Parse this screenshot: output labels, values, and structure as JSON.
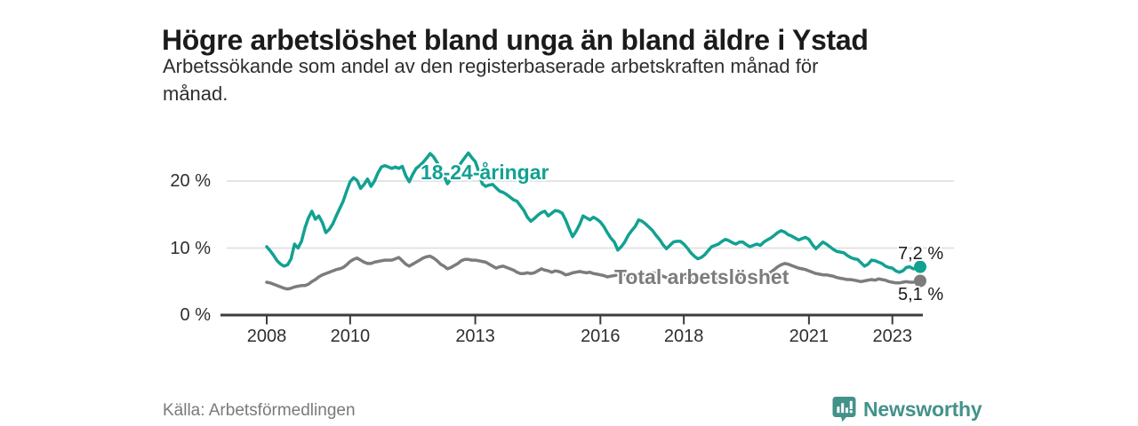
{
  "header": {
    "title": "Högre arbetslöshet bland unga än bland äldre i Ystad",
    "subtitle": "Arbetssökande som andel av den registerbaserade arbetskraften månad för månad.",
    "subtitle_line1": "Arbetssökande som andel av den registerbaserade arbetskraften månad för",
    "subtitle_line2": "månad."
  },
  "chart_data": {
    "type": "line",
    "title": "Högre arbetslöshet bland unga än bland äldre i Ystad",
    "x_start": "2008-01",
    "x_end": "2023-09",
    "x_frequency": "monthly",
    "xticks": [
      2008,
      2010,
      2013,
      2016,
      2018,
      2021,
      2023
    ],
    "yticks": [
      0,
      10,
      20
    ],
    "ytick_labels": [
      "0 %",
      "10 %",
      "20 %"
    ],
    "ylim": [
      0,
      25.5
    ],
    "grid": "horizontal",
    "legend_position": "inline-labels",
    "series": [
      {
        "name": "18-24-åringar",
        "color": "#12a192",
        "end_value": 7.2,
        "end_label": "7,2 %",
        "values": [
          10.2,
          9.6,
          8.9,
          8.1,
          7.6,
          7.3,
          7.5,
          8.4,
          10.6,
          10.0,
          11.0,
          13.0,
          14.5,
          15.5,
          14.3,
          14.8,
          13.8,
          12.3,
          12.8,
          13.6,
          14.8,
          15.9,
          17.0,
          18.5,
          19.9,
          20.5,
          20.1,
          18.9,
          19.5,
          20.3,
          19.2,
          20.0,
          21.2,
          22.1,
          22.3,
          22.1,
          21.9,
          22.1,
          21.9,
          22.2,
          20.8,
          19.9,
          21.0,
          21.9,
          22.3,
          22.8,
          23.4,
          24.1,
          23.6,
          22.8,
          21.9,
          20.8,
          19.6,
          20.3,
          21.2,
          22.0,
          22.8,
          23.5,
          24.2,
          23.5,
          22.9,
          21.4,
          19.6,
          19.2,
          19.4,
          19.5,
          19.0,
          18.5,
          18.3,
          18.0,
          17.6,
          17.2,
          17.0,
          16.3,
          15.6,
          14.6,
          14.0,
          14.4,
          14.9,
          15.3,
          15.5,
          14.8,
          15.2,
          15.6,
          15.5,
          15.2,
          14.2,
          12.9,
          11.7,
          12.5,
          13.5,
          14.8,
          14.5,
          14.2,
          14.6,
          14.3,
          13.9,
          13.2,
          12.3,
          11.5,
          10.9,
          9.7,
          10.2,
          10.9,
          11.9,
          12.6,
          13.2,
          14.2,
          14.0,
          13.6,
          13.1,
          12.6,
          11.9,
          11.3,
          10.5,
          9.9,
          10.4,
          10.9,
          11.0,
          11.0,
          10.6,
          10.0,
          9.3,
          8.8,
          8.4,
          8.6,
          9.0,
          9.6,
          10.2,
          10.4,
          10.6,
          11.0,
          11.3,
          11.1,
          10.8,
          10.6,
          10.9,
          10.9,
          10.5,
          10.2,
          10.4,
          10.6,
          10.4,
          10.9,
          11.2,
          11.5,
          11.9,
          12.3,
          12.6,
          12.4,
          12.0,
          11.8,
          11.5,
          11.2,
          11.4,
          11.6,
          11.3,
          10.5,
          9.9,
          10.4,
          10.9,
          10.6,
          10.2,
          9.8,
          9.5,
          9.4,
          9.3,
          8.9,
          8.6,
          8.4,
          8.3,
          7.8,
          7.3,
          7.6,
          8.2,
          8.1,
          7.9,
          7.7,
          7.3,
          7.1,
          7.0,
          6.6,
          6.4,
          6.6,
          7.1,
          7.2,
          6.9,
          7.0,
          7.2
        ]
      },
      {
        "name": "Total arbetslöshet",
        "color": "#7c7c7c",
        "end_value": 5.1,
        "end_label": "5,1 %",
        "values": [
          4.9,
          4.8,
          4.6,
          4.4,
          4.2,
          4.0,
          3.9,
          4.0,
          4.2,
          4.3,
          4.4,
          4.4,
          4.6,
          5.0,
          5.3,
          5.7,
          6.0,
          6.2,
          6.4,
          6.6,
          6.8,
          6.9,
          7.1,
          7.5,
          8.0,
          8.3,
          8.5,
          8.2,
          7.9,
          7.7,
          7.7,
          7.9,
          8.0,
          8.1,
          8.2,
          8.2,
          8.2,
          8.4,
          8.6,
          8.1,
          7.6,
          7.3,
          7.6,
          7.9,
          8.2,
          8.5,
          8.7,
          8.8,
          8.5,
          8.1,
          7.6,
          7.3,
          6.9,
          7.1,
          7.4,
          7.7,
          8.1,
          8.3,
          8.3,
          8.2,
          8.2,
          8.1,
          8.0,
          7.9,
          7.6,
          7.3,
          7.0,
          7.2,
          7.3,
          7.1,
          6.9,
          6.7,
          6.4,
          6.2,
          6.2,
          6.3,
          6.2,
          6.3,
          6.6,
          6.9,
          6.7,
          6.6,
          6.4,
          6.6,
          6.5,
          6.3,
          6.0,
          6.1,
          6.3,
          6.4,
          6.5,
          6.4,
          6.3,
          6.4,
          6.2,
          6.1,
          6.0,
          5.9,
          5.7,
          5.8,
          5.9,
          6.0,
          6.1,
          6.0,
          5.8,
          5.7,
          5.6,
          5.7,
          5.8,
          6.0,
          6.2,
          6.3,
          6.2,
          6.0,
          5.8,
          5.6,
          5.5,
          5.6,
          5.7,
          5.8,
          5.7,
          5.5,
          5.3,
          5.2,
          5.3,
          5.4,
          5.5,
          5.6,
          5.5,
          5.4,
          5.5,
          5.6,
          5.6,
          5.5,
          5.4,
          5.5,
          5.6,
          5.7,
          5.6,
          5.5,
          5.6,
          5.7,
          5.8,
          6.0,
          6.2,
          6.4,
          6.8,
          7.2,
          7.5,
          7.7,
          7.6,
          7.4,
          7.2,
          7.0,
          6.9,
          6.8,
          6.6,
          6.4,
          6.2,
          6.1,
          6.0,
          6.0,
          5.9,
          5.8,
          5.6,
          5.5,
          5.4,
          5.3,
          5.3,
          5.2,
          5.1,
          5.0,
          5.1,
          5.2,
          5.3,
          5.2,
          5.4,
          5.3,
          5.2,
          5.0,
          4.9,
          4.8,
          4.8,
          4.9,
          5.0,
          4.9,
          4.9,
          5.0,
          5.1
        ]
      }
    ]
  },
  "footer": {
    "source": "Källa: Arbetsförmedlingen",
    "logo_text": "Newsworthy"
  },
  "colors": {
    "young_line": "#12a192",
    "total_line": "#7c7c7c",
    "gridline": "#dcdcdc",
    "axis": "#3c3c3c",
    "title_text": "#1b1b1b",
    "body_text": "#2e2e2e",
    "end_label_text": "#1a1a1a",
    "source_text": "#7a7a7a",
    "logo_teal": "#43928a"
  }
}
